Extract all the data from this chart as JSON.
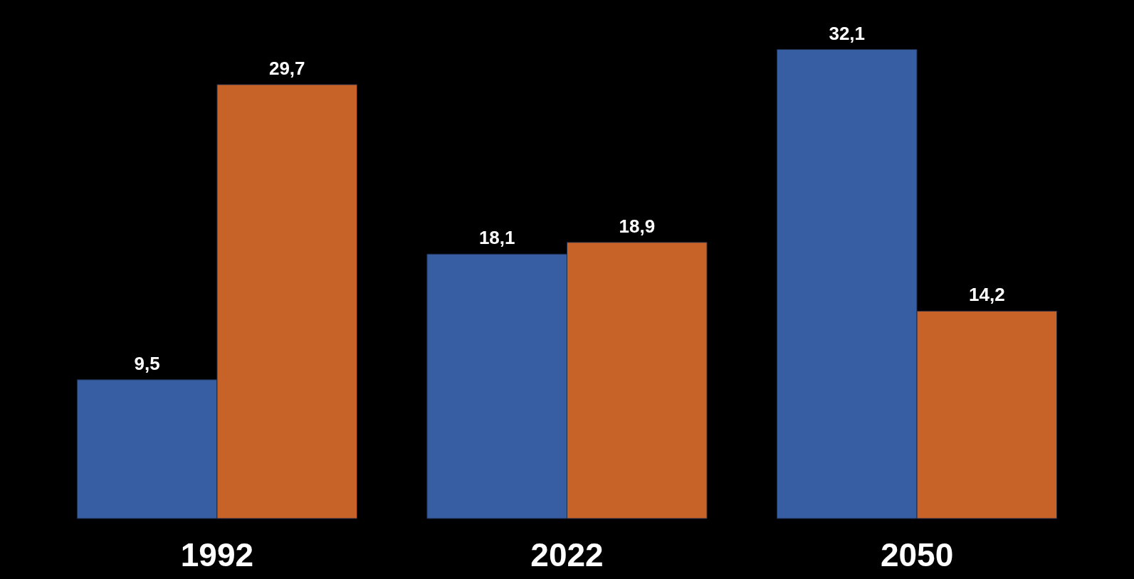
{
  "chart_data": {
    "type": "bar",
    "categories": [
      "1992",
      "2022",
      "2050"
    ],
    "series": [
      {
        "color": "#3a64ab",
        "values": [
          9.5,
          18.1,
          32.1
        ],
        "value_labels": [
          "9,5",
          "18,1",
          "32,1"
        ]
      },
      {
        "color": "#d2692c",
        "values": [
          29.7,
          18.9,
          14.2
        ],
        "value_labels": [
          "29,7",
          "18,9",
          "14,2"
        ]
      }
    ],
    "grid": false,
    "legend": false
  }
}
